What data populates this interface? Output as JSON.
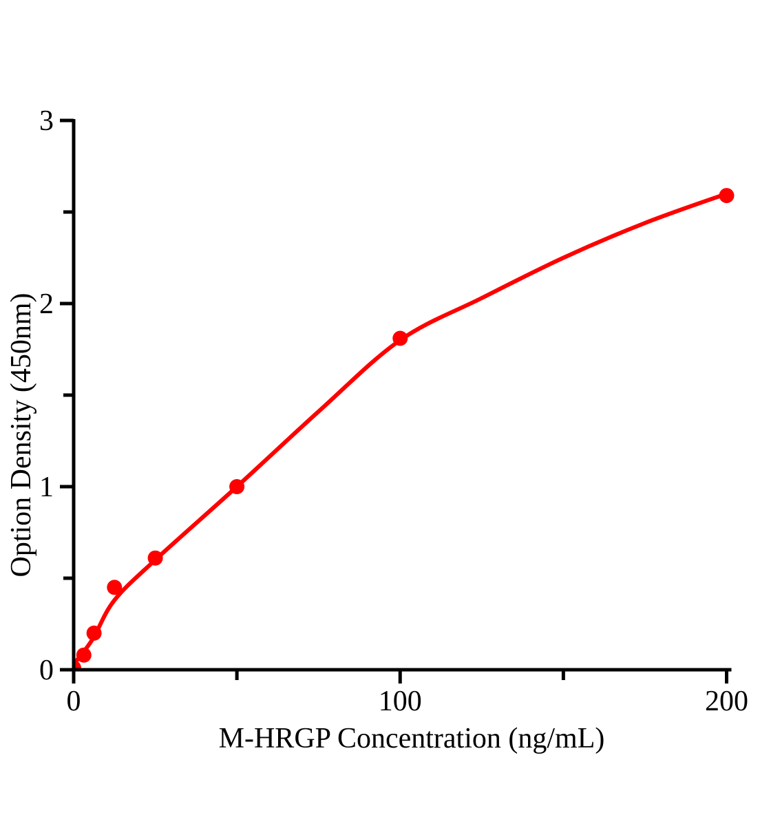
{
  "chart_data": {
    "type": "scatter",
    "title": "",
    "xlabel": "M-HRGP Concentration (ng/mL)",
    "ylabel": "Option Density (450nm)",
    "xlim": [
      0,
      200
    ],
    "ylim": [
      0,
      3
    ],
    "x_major_ticks": [
      0,
      100,
      200
    ],
    "x_minor_ticks": [
      50,
      150
    ],
    "y_major_ticks": [
      0,
      1,
      2,
      3
    ],
    "y_minor_ticks": [
      0.5,
      1.5,
      2.5
    ],
    "grid": false,
    "legend": false,
    "points": [
      {
        "x": 0,
        "y": 0.01
      },
      {
        "x": 3.125,
        "y": 0.08
      },
      {
        "x": 6.25,
        "y": 0.2
      },
      {
        "x": 12.5,
        "y": 0.45
      },
      {
        "x": 25,
        "y": 0.61
      },
      {
        "x": 50,
        "y": 1.0
      },
      {
        "x": 100,
        "y": 1.81
      },
      {
        "x": 200,
        "y": 2.59
      }
    ],
    "fit_curve_samples": [
      [
        0,
        0.03
      ],
      [
        3.125,
        0.1
      ],
      [
        6.25,
        0.18
      ],
      [
        12.5,
        0.38
      ],
      [
        25,
        0.6
      ],
      [
        50,
        1.0
      ],
      [
        75,
        1.41
      ],
      [
        100,
        1.8
      ],
      [
        125,
        2.03
      ],
      [
        150,
        2.25
      ],
      [
        175,
        2.44
      ],
      [
        200,
        2.6
      ]
    ],
    "colors": {
      "curve": "#ff0000",
      "point": "#ff0000",
      "axis": "#000000",
      "background": "#ffffff"
    }
  }
}
